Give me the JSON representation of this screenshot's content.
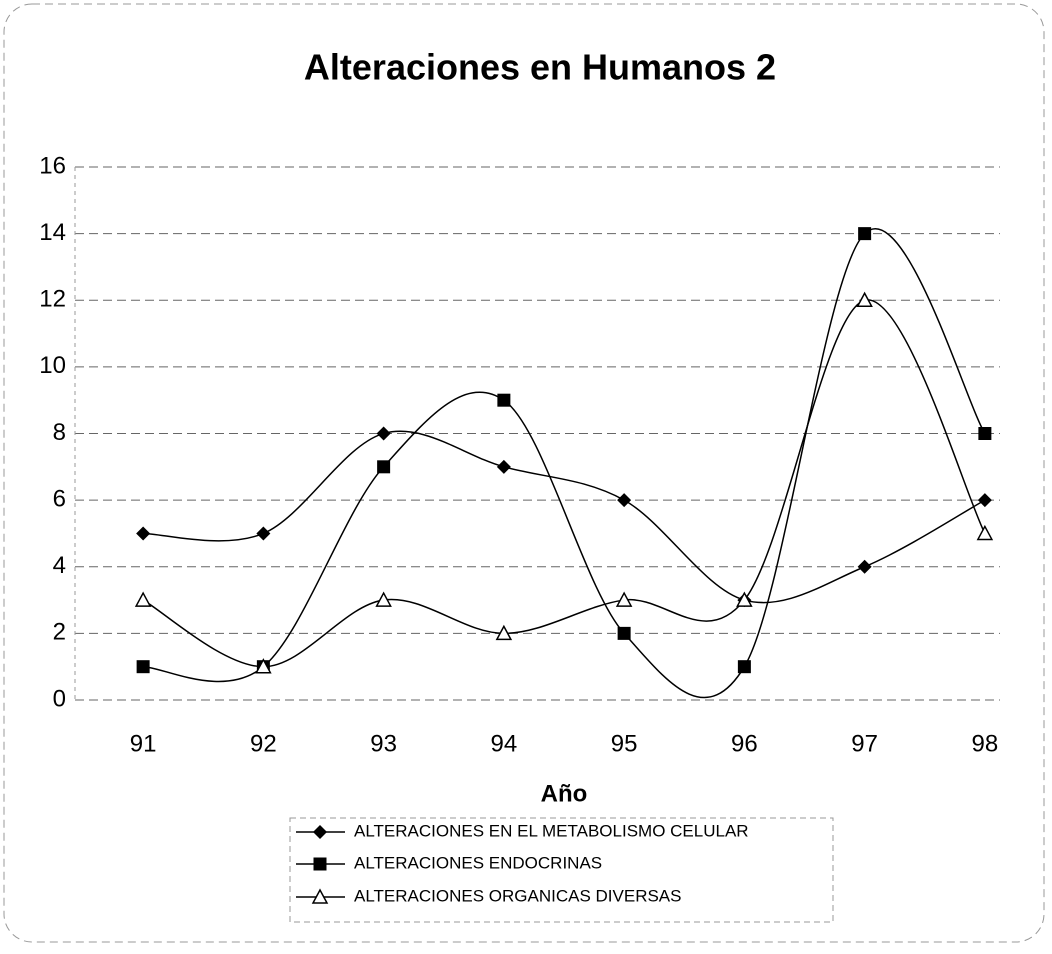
{
  "chart_data": {
    "type": "line",
    "title": "Alteraciones en Humanos 2",
    "x_label": "Año",
    "categories": [
      "91",
      "92",
      "93",
      "94",
      "95",
      "96",
      "97",
      "98"
    ],
    "series": [
      {
        "name": "ALTERACIONES EN EL METABOLISMO CELULAR",
        "color": "#000000",
        "marker": "diamond",
        "values": [
          5,
          5,
          8,
          7,
          6,
          3,
          4,
          6
        ]
      },
      {
        "name": "ALTERACIONES ENDOCRINAS",
        "color": "#000000",
        "marker": "square",
        "values": [
          1,
          1,
          7,
          9,
          2,
          1,
          14,
          8
        ]
      },
      {
        "name": "ALTERACIONES ORGANICAS DIVERSAS",
        "color": "#000000",
        "marker": "triangle",
        "values": [
          3,
          1,
          3,
          2,
          3,
          3,
          12,
          5
        ]
      }
    ],
    "ylim": [
      0,
      16
    ],
    "yticks": [
      0,
      2,
      4,
      6,
      8,
      10,
      12,
      14,
      16
    ],
    "grid": true,
    "smooth": true,
    "legend": "bottom"
  }
}
